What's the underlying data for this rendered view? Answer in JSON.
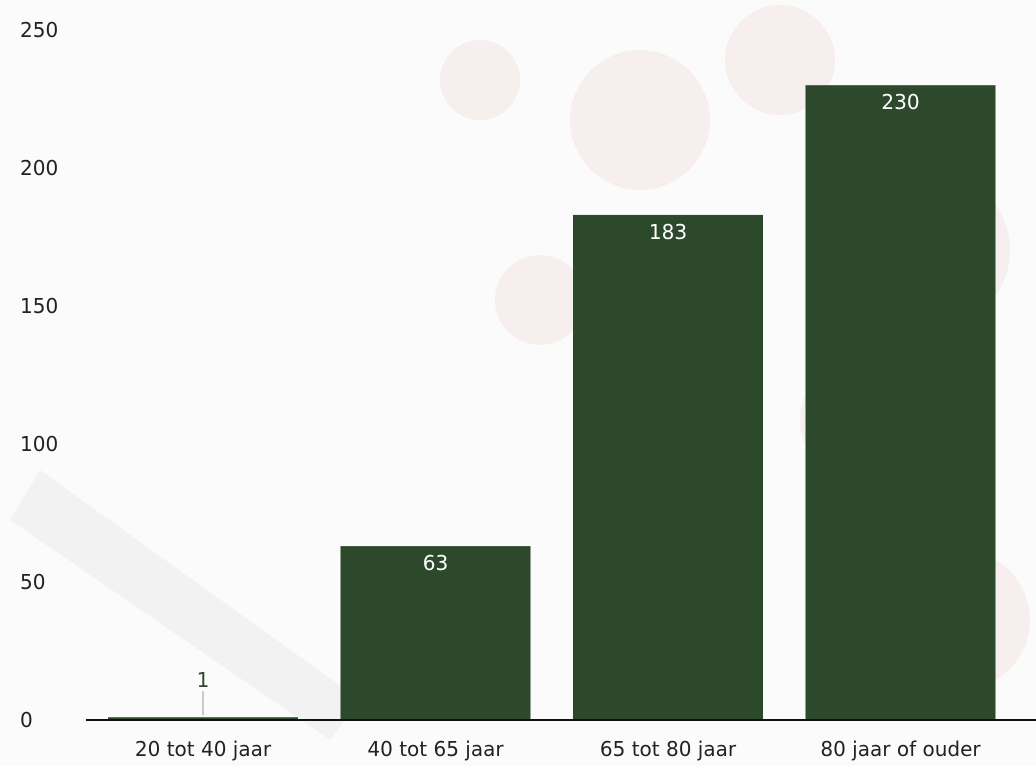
{
  "colors": {
    "bar": "#2c4a2b",
    "label_inside": "#ffffff",
    "label_outside": "#2c4a2b",
    "axis": "#111111",
    "background": "#fbfbfb",
    "watermark": "#f1dede"
  },
  "chart_data": {
    "type": "bar",
    "title": "",
    "xlabel": "",
    "ylabel": "",
    "categories": [
      "20 tot 40 jaar",
      "40 tot 65 jaar",
      "65 tot 80 jaar",
      "80 jaar of ouder"
    ],
    "values": [
      1,
      63,
      183,
      230
    ],
    "data_labels": [
      "1",
      "63",
      "183",
      "230"
    ],
    "ylim": [
      0,
      250
    ],
    "yticks": [
      0,
      50,
      100,
      150,
      200,
      250
    ],
    "ytick_labels": [
      "0",
      "50",
      "100",
      "150",
      "200",
      "250"
    ],
    "grid": false,
    "legend": "none"
  }
}
